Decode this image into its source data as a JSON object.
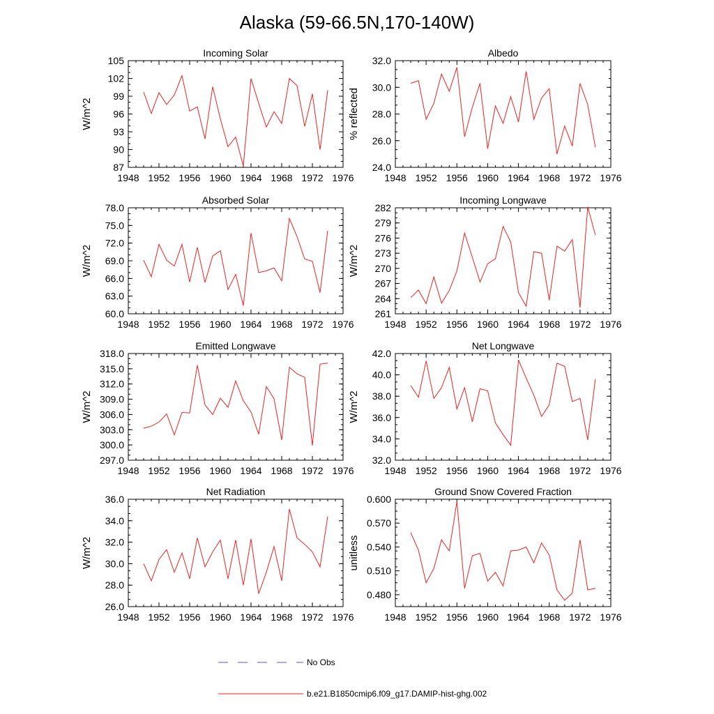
{
  "figure": {
    "title": "Alaska (59-66.5N,170-140W)"
  },
  "legend": {
    "entries": [
      {
        "label": "No Obs",
        "color": "#5555cc",
        "style": "dashed"
      },
      {
        "label": "b.e21.B1850cmip6.f09_g17.DAMIP-hist-ghg.002",
        "color": "#ee2222",
        "style": "solid"
      }
    ]
  },
  "colors": {
    "series": "#ee2222",
    "obs": "#5555cc",
    "axis": "#000000"
  },
  "chart_data": [
    {
      "type": "line",
      "title": "Incoming Solar",
      "ylabel": "W/m^2",
      "xlim": [
        1948,
        1976
      ],
      "xticks": [
        1948,
        1952,
        1956,
        1960,
        1964,
        1968,
        1972,
        1976
      ],
      "ylim": [
        87,
        105
      ],
      "yticks": [
        "87",
        "90",
        "93",
        "96",
        "99",
        "102",
        "105"
      ],
      "series": [
        {
          "x": [
            1950,
            1951,
            1952,
            1953,
            1954,
            1955,
            1956,
            1957,
            1958,
            1959,
            1960,
            1961,
            1962,
            1963,
            1964,
            1965,
            1966,
            1967,
            1968,
            1969,
            1970,
            1971,
            1972,
            1973,
            1974
          ],
          "values": [
            99.7,
            96.1,
            99.6,
            97.6,
            99.2,
            102.5,
            96.5,
            97.2,
            91.8,
            100.6,
            95.2,
            90.5,
            92.1,
            87.2,
            102.0,
            97.8,
            93.8,
            96.4,
            94.4,
            102.0,
            100.8,
            93.9,
            99.4,
            90.0,
            100.0
          ]
        }
      ]
    },
    {
      "type": "line",
      "title": "Albedo",
      "ylabel": "% reflected",
      "xlim": [
        1948,
        1976
      ],
      "xticks": [
        1948,
        1952,
        1956,
        1960,
        1964,
        1968,
        1972,
        1976
      ],
      "ylim": [
        24,
        32
      ],
      "yticks": [
        "24.0",
        "26.0",
        "28.0",
        "30.0",
        "32.0"
      ],
      "series": [
        {
          "x": [
            1950,
            1951,
            1952,
            1953,
            1954,
            1955,
            1956,
            1957,
            1958,
            1959,
            1960,
            1961,
            1962,
            1963,
            1964,
            1965,
            1966,
            1967,
            1968,
            1969,
            1970,
            1971,
            1972,
            1973,
            1974
          ],
          "values": [
            30.3,
            30.5,
            27.6,
            28.8,
            31.0,
            29.7,
            31.5,
            26.3,
            28.5,
            30.3,
            25.4,
            28.6,
            27.3,
            29.3,
            27.4,
            31.2,
            27.6,
            29.2,
            29.9,
            25.0,
            27.1,
            25.6,
            30.3,
            28.7,
            25.5
          ]
        }
      ]
    },
    {
      "type": "line",
      "title": "Absorbed Solar",
      "ylabel": "W/m^2",
      "xlim": [
        1948,
        1976
      ],
      "xticks": [
        1948,
        1952,
        1956,
        1960,
        1964,
        1968,
        1972,
        1976
      ],
      "ylim": [
        60,
        78
      ],
      "yticks": [
        "60.0",
        "63.0",
        "66.0",
        "69.0",
        "72.0",
        "75.0",
        "78.0"
      ],
      "series": [
        {
          "x": [
            1950,
            1951,
            1952,
            1953,
            1954,
            1955,
            1956,
            1957,
            1958,
            1959,
            1960,
            1961,
            1962,
            1963,
            1964,
            1965,
            1966,
            1967,
            1968,
            1969,
            1970,
            1971,
            1972,
            1973,
            1974
          ],
          "values": [
            69.1,
            66.3,
            71.8,
            69.1,
            68.1,
            71.8,
            65.4,
            71.3,
            65.3,
            69.8,
            70.7,
            64.1,
            66.7,
            61.4,
            73.7,
            67.0,
            67.3,
            67.8,
            65.6,
            76.2,
            73.1,
            69.3,
            68.9,
            63.6,
            74.1
          ]
        }
      ]
    },
    {
      "type": "line",
      "title": "Incoming Longwave",
      "ylabel": "W/m^2",
      "xlim": [
        1948,
        1976
      ],
      "xticks": [
        1948,
        1952,
        1956,
        1960,
        1964,
        1968,
        1972,
        1976
      ],
      "ylim": [
        261,
        282
      ],
      "yticks": [
        "261",
        "264",
        "267",
        "270",
        "273",
        "276",
        "279",
        "282"
      ],
      "series": [
        {
          "x": [
            1950,
            1951,
            1952,
            1953,
            1954,
            1955,
            1956,
            1957,
            1958,
            1959,
            1960,
            1961,
            1962,
            1963,
            1964,
            1965,
            1966,
            1967,
            1968,
            1969,
            1970,
            1971,
            1972,
            1973,
            1974
          ],
          "values": [
            264.2,
            265.7,
            263.0,
            268.3,
            263.1,
            265.6,
            269.5,
            277.0,
            272.2,
            267.3,
            270.9,
            271.9,
            278.3,
            275.2,
            265.2,
            262.5,
            273.3,
            273.0,
            263.7,
            274.4,
            273.4,
            275.7,
            262.2,
            282.2,
            276.6
          ]
        }
      ]
    },
    {
      "type": "line",
      "title": "Emitted Longwave",
      "ylabel": "W/m^2",
      "xlim": [
        1948,
        1976
      ],
      "xticks": [
        1948,
        1952,
        1956,
        1960,
        1964,
        1968,
        1972,
        1976
      ],
      "ylim": [
        297,
        318
      ],
      "yticks": [
        "297.0",
        "300.0",
        "303.0",
        "306.0",
        "309.0",
        "312.0",
        "315.0",
        "318.0"
      ],
      "series": [
        {
          "x": [
            1950,
            1951,
            1952,
            1953,
            1954,
            1955,
            1956,
            1957,
            1958,
            1959,
            1960,
            1961,
            1962,
            1963,
            1964,
            1965,
            1966,
            1967,
            1968,
            1969,
            1970,
            1971,
            1972,
            1973,
            1974
          ],
          "values": [
            303.3,
            303.7,
            304.5,
            306.1,
            302.0,
            306.4,
            306.3,
            315.7,
            307.9,
            306.0,
            309.2,
            307.4,
            312.6,
            308.7,
            306.5,
            302.1,
            311.5,
            309.1,
            301.0,
            315.3,
            314.0,
            313.3,
            299.9,
            315.9,
            316.1
          ]
        }
      ]
    },
    {
      "type": "line",
      "title": "Net Longwave",
      "ylabel": "W/m^2",
      "xlim": [
        1948,
        1976
      ],
      "xticks": [
        1948,
        1952,
        1956,
        1960,
        1964,
        1968,
        1972,
        1976
      ],
      "ylim": [
        32,
        42
      ],
      "yticks": [
        "32.0",
        "34.0",
        "36.0",
        "38.0",
        "40.0",
        "42.0"
      ],
      "series": [
        {
          "x": [
            1950,
            1951,
            1952,
            1953,
            1954,
            1955,
            1956,
            1957,
            1958,
            1959,
            1960,
            1961,
            1962,
            1963,
            1964,
            1965,
            1966,
            1967,
            1968,
            1969,
            1970,
            1971,
            1972,
            1973,
            1974
          ],
          "values": [
            39.0,
            37.9,
            41.3,
            37.8,
            38.8,
            40.7,
            36.8,
            38.8,
            35.6,
            38.7,
            38.5,
            35.5,
            34.4,
            33.4,
            41.4,
            39.7,
            38.1,
            36.1,
            37.2,
            41.1,
            40.8,
            37.5,
            37.8,
            33.9,
            39.6
          ]
        }
      ]
    },
    {
      "type": "line",
      "title": "Net Radiation",
      "ylabel": "W/m^2",
      "xlim": [
        1948,
        1976
      ],
      "xticks": [
        1948,
        1952,
        1956,
        1960,
        1964,
        1968,
        1972,
        1976
      ],
      "ylim": [
        26,
        36
      ],
      "yticks": [
        "26.0",
        "28.0",
        "30.0",
        "32.0",
        "34.0",
        "36.0"
      ],
      "series": [
        {
          "x": [
            1950,
            1951,
            1952,
            1953,
            1954,
            1955,
            1956,
            1957,
            1958,
            1959,
            1960,
            1961,
            1962,
            1963,
            1964,
            1965,
            1966,
            1967,
            1968,
            1969,
            1970,
            1971,
            1972,
            1973,
            1974
          ],
          "values": [
            30.0,
            28.4,
            30.4,
            31.3,
            29.2,
            31.0,
            28.6,
            32.4,
            29.7,
            31.1,
            32.2,
            28.6,
            32.2,
            28.0,
            32.3,
            27.2,
            29.2,
            31.6,
            28.4,
            35.1,
            32.4,
            31.8,
            31.1,
            29.7,
            34.4
          ]
        }
      ]
    },
    {
      "type": "line",
      "title": "Ground Snow Covered Fraction",
      "ylabel": "unitless",
      "xlim": [
        1948,
        1976
      ],
      "xticks": [
        1948,
        1952,
        1956,
        1960,
        1964,
        1968,
        1972,
        1976
      ],
      "ylim": [
        0.465,
        0.6
      ],
      "yticks": [
        "0.480",
        "0.510",
        "0.540",
        "0.570",
        "0.600"
      ],
      "series": [
        {
          "x": [
            1950,
            1951,
            1952,
            1953,
            1954,
            1955,
            1956,
            1957,
            1958,
            1959,
            1960,
            1961,
            1962,
            1963,
            1964,
            1965,
            1966,
            1967,
            1968,
            1969,
            1970,
            1971,
            1972,
            1973,
            1974
          ],
          "values": [
            0.558,
            0.536,
            0.495,
            0.513,
            0.549,
            0.535,
            0.597,
            0.488,
            0.529,
            0.532,
            0.497,
            0.508,
            0.491,
            0.535,
            0.536,
            0.54,
            0.52,
            0.545,
            0.53,
            0.486,
            0.473,
            0.482,
            0.549,
            0.486,
            0.488
          ]
        }
      ]
    }
  ]
}
